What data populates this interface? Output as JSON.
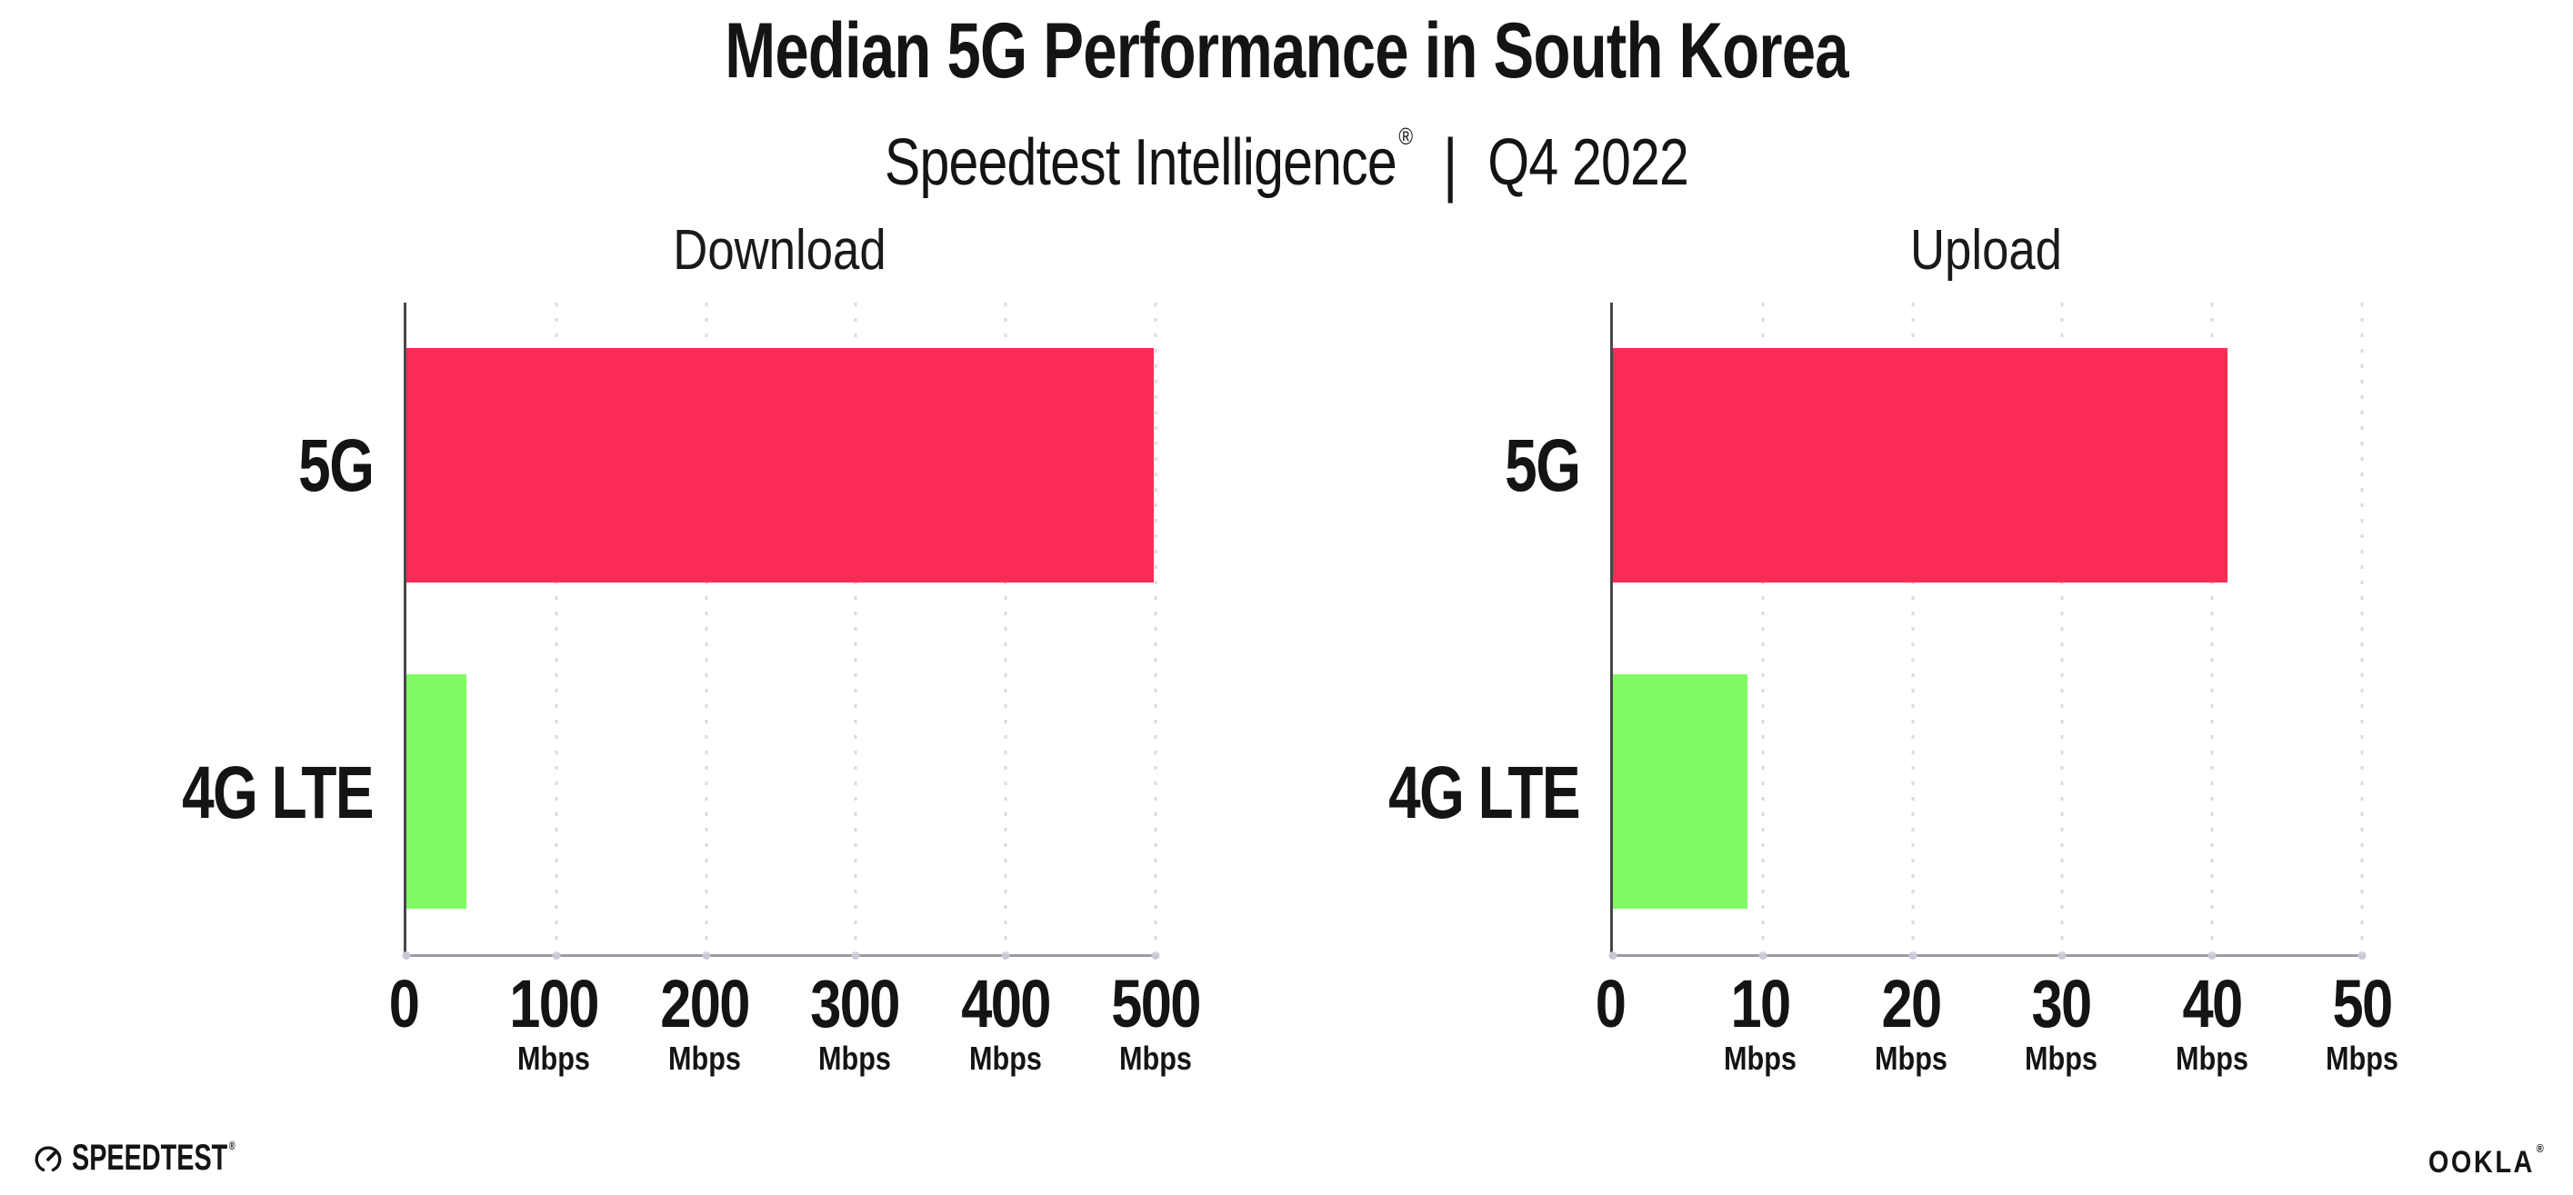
{
  "header": {
    "title": "Median 5G Performance in South Korea",
    "subtitle_brand": "Speedtest Intelligence",
    "registered_mark": "®",
    "subtitle_divider": "|",
    "subtitle_period": "Q4 2022"
  },
  "chart_data": [
    {
      "type": "bar",
      "orientation": "horizontal",
      "title": "Download",
      "categories": [
        "5G",
        "4G LTE"
      ],
      "values": [
        499,
        40
      ],
      "unit": "Mbps",
      "xlim": [
        0,
        500
      ],
      "ticks": [
        0,
        100,
        200,
        300,
        400,
        500
      ],
      "tick_unit": "Mbps",
      "bar_colors": [
        "#FC2B55",
        "#80FB64"
      ],
      "grid": "dotted vertical gridlines at each tick",
      "legend": "none"
    },
    {
      "type": "bar",
      "orientation": "horizontal",
      "title": "Upload",
      "categories": [
        "5G",
        "4G LTE"
      ],
      "values": [
        41,
        9
      ],
      "unit": "Mbps",
      "xlim": [
        0,
        50
      ],
      "ticks": [
        0,
        10,
        20,
        30,
        40,
        50
      ],
      "tick_unit": "Mbps",
      "bar_colors": [
        "#FC2B55",
        "#80FB64"
      ],
      "grid": "dotted vertical gridlines at each tick",
      "legend": "none"
    }
  ],
  "footer": {
    "speedtest_logo_text": "SPEEDTEST",
    "speedtest_reg": "®",
    "ookla_logo_text": "OOKLA",
    "ookla_reg": "®"
  },
  "colors": {
    "bar_5g": "#FC2B55",
    "bar_4g_lte": "#80FB64",
    "text": "#141414",
    "chart_title_text": "#1A1A1A",
    "gridline": "#DADAE4",
    "x_axis_line": "#9B9BA3",
    "y_axis_line": "#47474D",
    "background": "#FFFFFF"
  }
}
